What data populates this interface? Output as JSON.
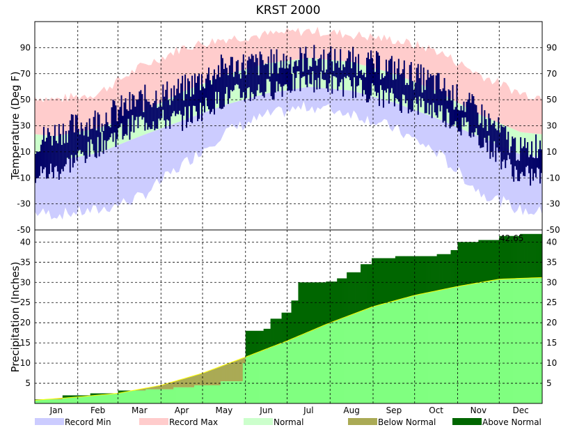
{
  "chart_data": {
    "title": "KRST 2000",
    "type": "area",
    "months": [
      "Jan",
      "Feb",
      "Mar",
      "Apr",
      "May",
      "Jun",
      "Jul",
      "Aug",
      "Sep",
      "Oct",
      "Nov",
      "Dec"
    ],
    "temperature": {
      "ylabel": "Temperature (Deg F)",
      "ylim": [
        -50,
        110
      ],
      "ticks": [
        -50,
        -30,
        -10,
        10,
        30,
        50,
        70,
        90
      ],
      "normal_high": [
        22,
        28,
        40,
        56,
        69,
        78,
        82,
        79,
        70,
        57,
        39,
        25
      ],
      "normal_low": [
        3,
        9,
        22,
        34,
        46,
        55,
        60,
        57,
        48,
        36,
        22,
        8
      ],
      "record_max": [
        50,
        55,
        75,
        90,
        97,
        100,
        103,
        100,
        96,
        88,
        70,
        55
      ],
      "record_min": [
        -38,
        -35,
        -25,
        0,
        25,
        38,
        45,
        40,
        28,
        10,
        -20,
        -35
      ],
      "observed_high": [
        25,
        35,
        50,
        58,
        76,
        78,
        82,
        80,
        74,
        62,
        40,
        10
      ],
      "observed_low": [
        -5,
        15,
        33,
        35,
        52,
        58,
        65,
        60,
        50,
        42,
        22,
        -10
      ]
    },
    "precipitation": {
      "ylabel": "Precipitation (Inches)",
      "ylim": [
        0,
        43
      ],
      "ticks": [
        5,
        10,
        15,
        20,
        25,
        30,
        35,
        40
      ],
      "total_label": "42.65",
      "normal_cumulative": [
        [
          0,
          0.8
        ],
        [
          31,
          1.6
        ],
        [
          60,
          2.5
        ],
        [
          91,
          4.5
        ],
        [
          121,
          7.5
        ],
        [
          152,
          11.5
        ],
        [
          182,
          15.5
        ],
        [
          213,
          20.0
        ],
        [
          244,
          24.0
        ],
        [
          274,
          26.8
        ],
        [
          305,
          29.0
        ],
        [
          335,
          30.8
        ],
        [
          366,
          31.2
        ]
      ],
      "observed_cumulative": [
        [
          0,
          1.0
        ],
        [
          20,
          2.0
        ],
        [
          40,
          2.5
        ],
        [
          60,
          3.2
        ],
        [
          80,
          3.5
        ],
        [
          100,
          4.0
        ],
        [
          115,
          4.5
        ],
        [
          134,
          5.5
        ],
        [
          150,
          10.0
        ],
        [
          152,
          18.0
        ],
        [
          165,
          18.5
        ],
        [
          170,
          21.0
        ],
        [
          178,
          22.5
        ],
        [
          185,
          25.5
        ],
        [
          190,
          30.0
        ],
        [
          210,
          30.2
        ],
        [
          218,
          31.0
        ],
        [
          225,
          32.5
        ],
        [
          235,
          34.5
        ],
        [
          243,
          36.0
        ],
        [
          260,
          36.5
        ],
        [
          278,
          36.5
        ],
        [
          290,
          37.0
        ],
        [
          300,
          38.0
        ],
        [
          305,
          40.0
        ],
        [
          320,
          40.5
        ],
        [
          335,
          41.5
        ],
        [
          350,
          42.0
        ],
        [
          366,
          42.65
        ]
      ]
    },
    "legend": [
      {
        "label": "Record Min",
        "color": "#ccccff"
      },
      {
        "label": "Record Max",
        "color": "#ffcccc"
      },
      {
        "label": "Normal",
        "color": "#ccffcc"
      },
      {
        "label": "Below Normal",
        "color": "#aaaa55"
      },
      {
        "label": "Above Normal",
        "color": "#006600"
      }
    ],
    "colors": {
      "observed": "#000066",
      "normal_precip": "#80ff80",
      "normal_line": "#ffff00"
    }
  }
}
